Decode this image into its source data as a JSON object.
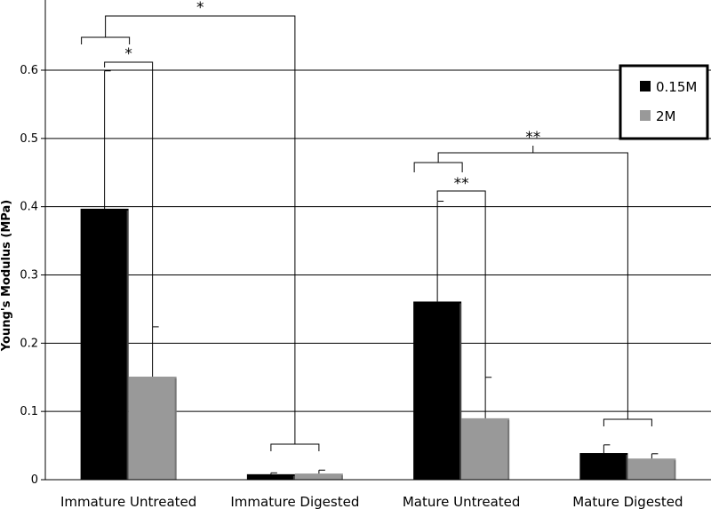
{
  "chart_data": {
    "type": "bar",
    "title": "",
    "xlabel": "",
    "ylabel": "Young's Modulus (MPa)",
    "ylim": [
      0,
      0.6
    ],
    "yticks": [
      "0",
      "0.1",
      "0.2",
      "0.3",
      "0.4",
      "0.5",
      "0.6"
    ],
    "grid": true,
    "legend_position": "top-right",
    "categories": [
      "Immature Untreated",
      "Immature Digested",
      "Mature Untreated",
      "Mature Digested"
    ],
    "series": [
      {
        "name": "0.15M",
        "color": "#000000",
        "values": [
          0.397,
          0.008,
          0.261,
          0.039
        ],
        "error_upper": [
          0.599,
          0.01,
          0.408,
          0.051
        ]
      },
      {
        "name": "2M",
        "color": "#999999",
        "values": [
          0.151,
          0.009,
          0.09,
          0.031
        ],
        "error_upper": [
          0.224,
          0.014,
          0.15,
          0.038
        ]
      }
    ],
    "annotations": [
      "*",
      "*",
      "**",
      "**"
    ]
  }
}
